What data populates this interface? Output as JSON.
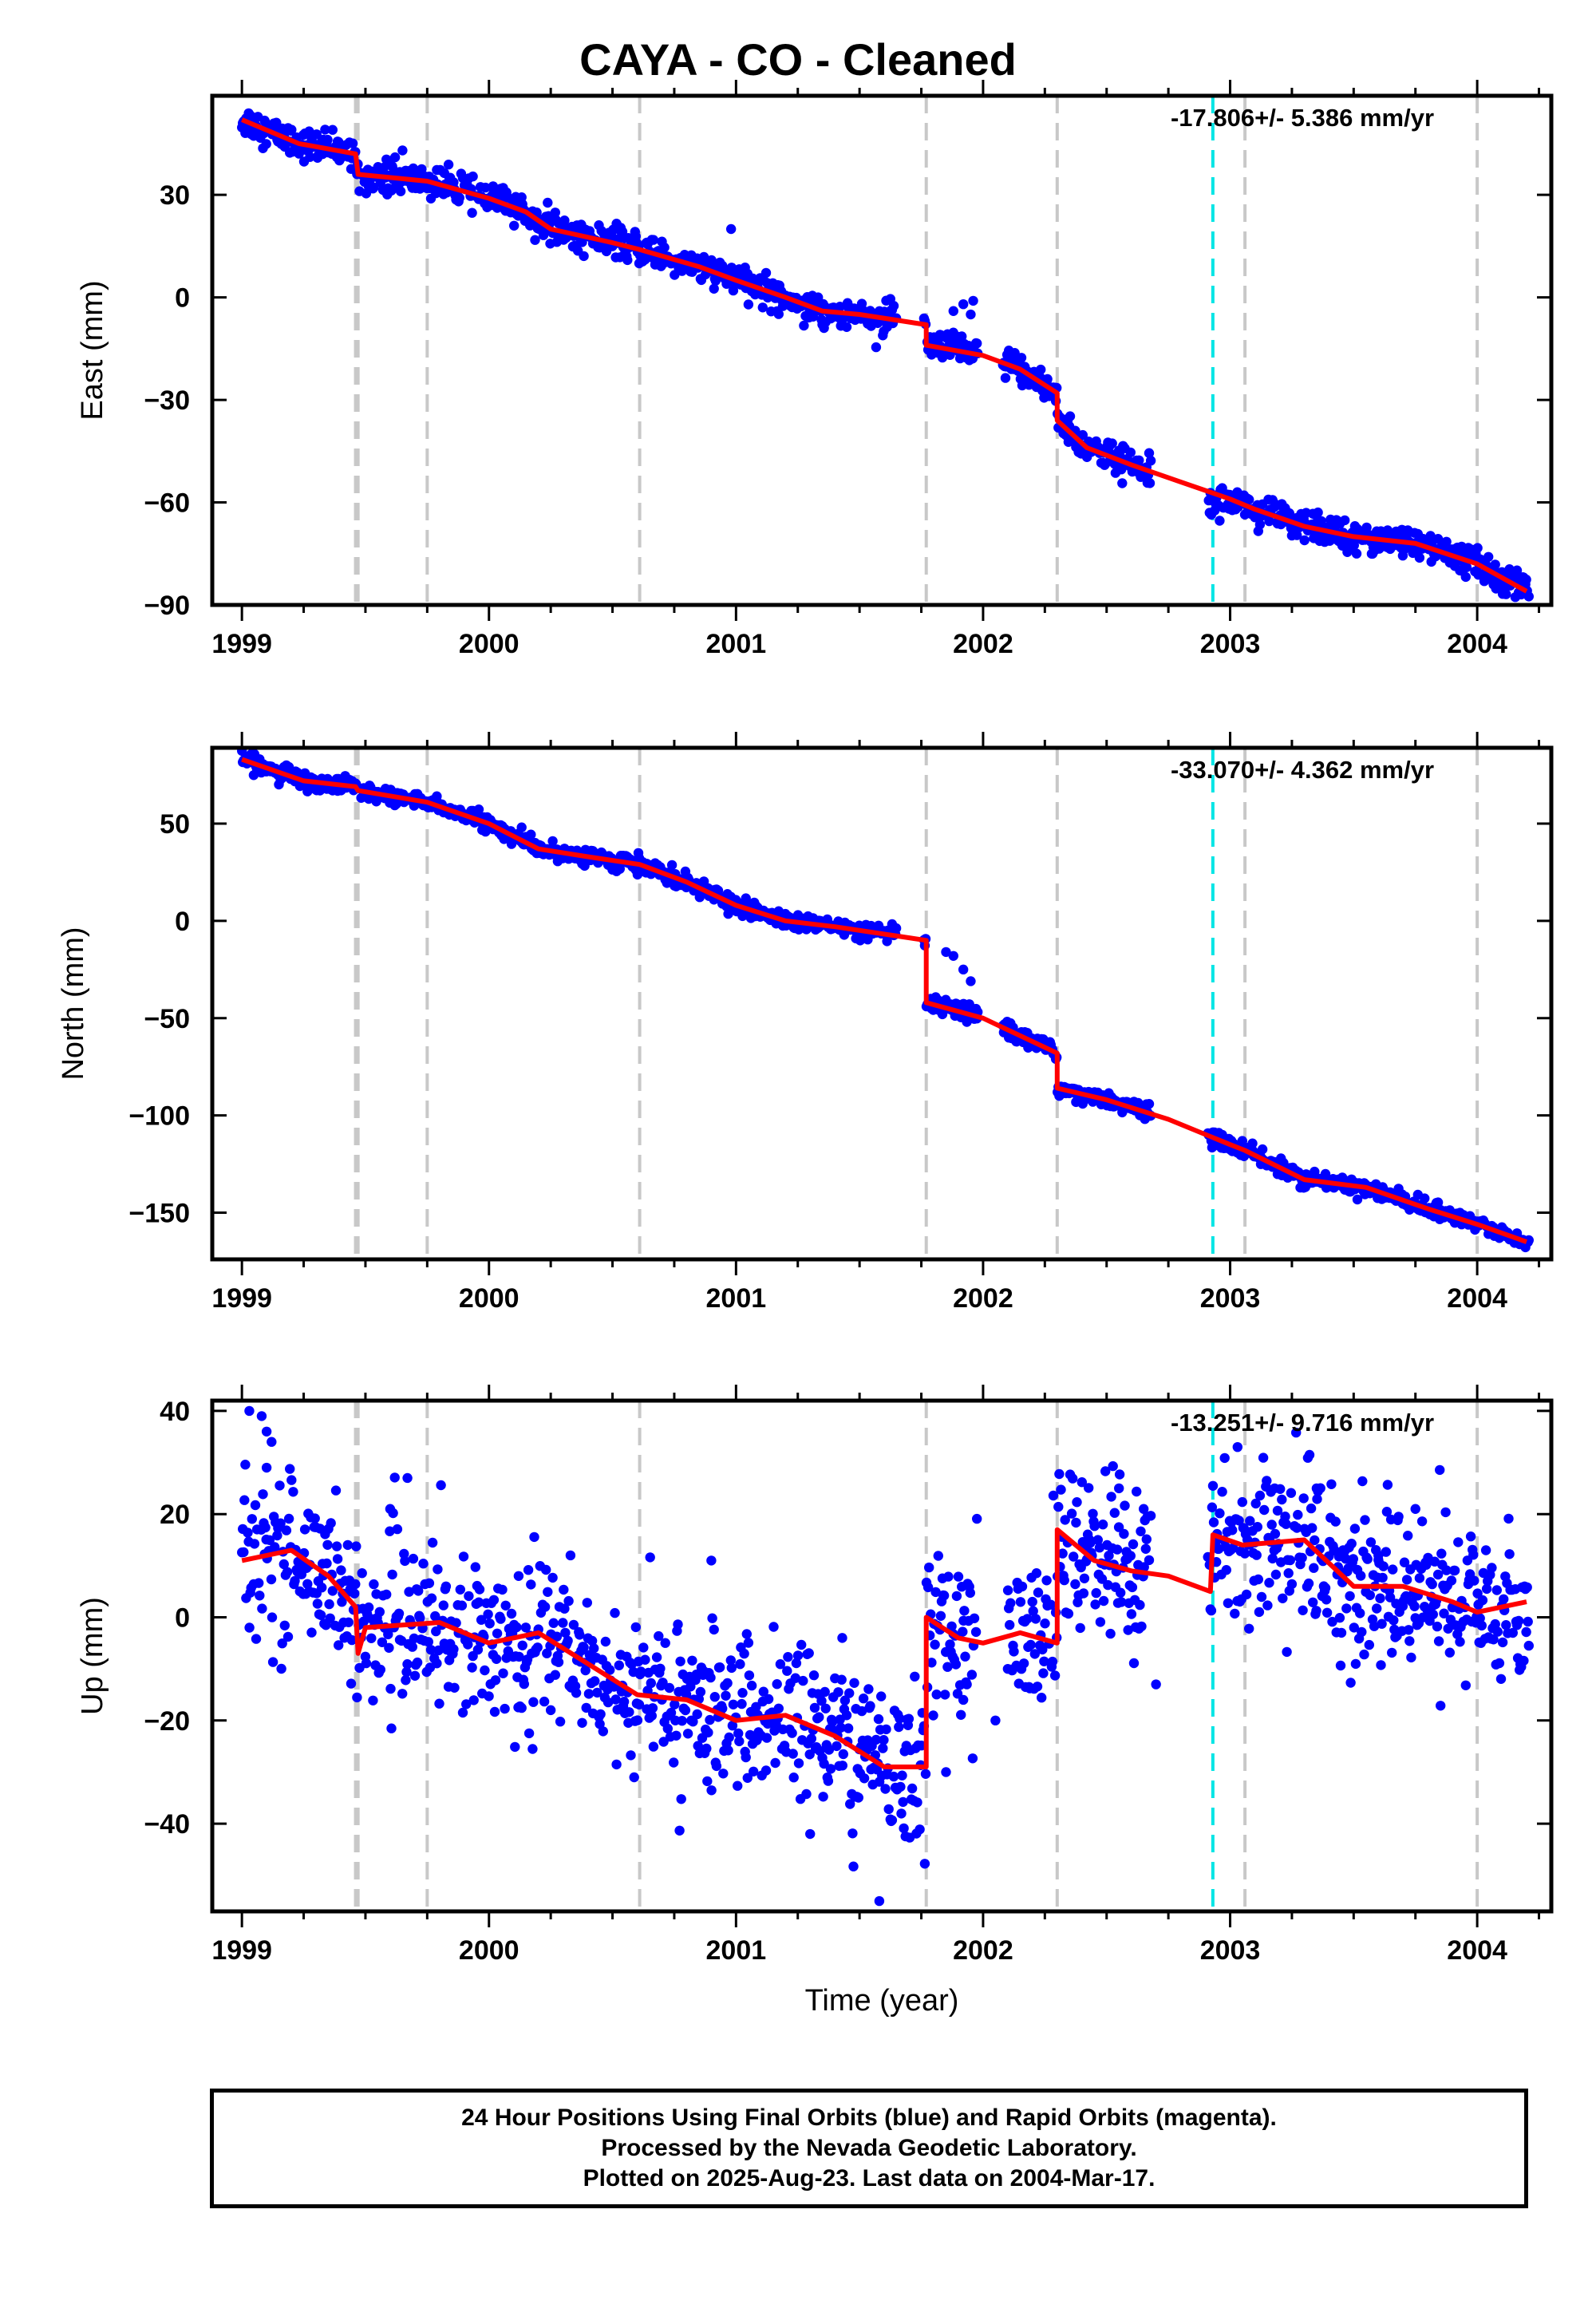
{
  "title": "CAYA  - CO - Cleaned",
  "colors": {
    "final_orbits": "#0000ff",
    "model": "#ff0000",
    "equipment_change": "#c8c8c8",
    "earthquake": "#00e5e5",
    "frame": "#000000"
  },
  "footer": {
    "line1": "24 Hour Positions Using Final Orbits (blue) and Rapid Orbits (magenta).",
    "line2": "Processed by the Nevada Geodetic Laboratory.",
    "line3": "Plotted on 2025-Aug-23. Last data on 2004-Mar-17."
  },
  "chart_data": [
    {
      "type": "scatter",
      "component": "east",
      "ylabel": "East (mm)",
      "xlabel": "",
      "xlim": [
        1998.88,
        2004.3
      ],
      "ylim": [
        -90,
        59
      ],
      "xticks": [
        1999,
        2000,
        2001,
        2002,
        2003,
        2004
      ],
      "yticks": [
        30,
        0,
        -30,
        -60,
        -90
      ],
      "rate_text": "-17.806+/- 5.386 mm/yr",
      "equipment_change_lines": [
        1999.46,
        1999.47,
        1999.75,
        2000.61,
        2001.77,
        2002.3,
        2003.06,
        2004.0
      ],
      "earthquake_lines": [
        2002.93
      ],
      "data_gaps": [
        [
          2001.65,
          2001.76
        ],
        [
          2001.98,
          2002.08
        ],
        [
          2002.68,
          2002.91
        ]
      ],
      "model_points": [
        [
          1999.0,
          52
        ],
        [
          1999.23,
          45
        ],
        [
          1999.46,
          42
        ],
        [
          1999.47,
          36
        ],
        [
          1999.75,
          34
        ],
        [
          2000.0,
          29
        ],
        [
          2000.15,
          25
        ],
        [
          2000.25,
          20
        ],
        [
          2000.5,
          16
        ],
        [
          2000.61,
          14
        ],
        [
          2000.85,
          9
        ],
        [
          2001.0,
          5
        ],
        [
          2001.2,
          0
        ],
        [
          2001.35,
          -4
        ],
        [
          2001.5,
          -5
        ],
        [
          2001.77,
          -8
        ],
        [
          2001.77,
          -14
        ],
        [
          2002.0,
          -17
        ],
        [
          2002.15,
          -21
        ],
        [
          2002.3,
          -28
        ],
        [
          2002.3,
          -36
        ],
        [
          2002.42,
          -44
        ],
        [
          2002.6,
          -49
        ],
        [
          2002.8,
          -54
        ],
        [
          2003.0,
          -59
        ],
        [
          2003.1,
          -62
        ],
        [
          2003.3,
          -67
        ],
        [
          2003.5,
          -70
        ],
        [
          2003.75,
          -72
        ],
        [
          2004.0,
          -78
        ],
        [
          2004.2,
          -86
        ]
      ],
      "noise_amplitude": 2.2,
      "outlier_points": [
        [
          1999.62,
          41
        ],
        [
          1999.65,
          43
        ],
        [
          2000.98,
          20
        ],
        [
          2001.88,
          -4
        ],
        [
          2001.92,
          -2
        ],
        [
          2001.95,
          -5
        ],
        [
          2001.96,
          -1
        ]
      ]
    },
    {
      "type": "scatter",
      "component": "north",
      "ylabel": "North (mm)",
      "xlabel": "",
      "xlim": [
        1998.88,
        2004.3
      ],
      "ylim": [
        -174,
        89
      ],
      "xticks": [
        1999,
        2000,
        2001,
        2002,
        2003,
        2004
      ],
      "yticks": [
        50,
        0,
        -50,
        -100,
        -150
      ],
      "rate_text": "-33.070+/- 4.362 mm/yr",
      "equipment_change_lines": [
        1999.46,
        1999.47,
        1999.75,
        2000.61,
        2001.77,
        2002.3,
        2003.06,
        2004.0
      ],
      "earthquake_lines": [
        2002.93
      ],
      "data_gaps": [
        [
          2001.65,
          2001.76
        ],
        [
          2001.98,
          2002.08
        ],
        [
          2002.68,
          2002.91
        ]
      ],
      "model_points": [
        [
          1999.0,
          83
        ],
        [
          1999.25,
          72
        ],
        [
          1999.46,
          69
        ],
        [
          1999.47,
          67
        ],
        [
          1999.75,
          61
        ],
        [
          2000.0,
          50
        ],
        [
          2000.2,
          37
        ],
        [
          2000.4,
          33
        ],
        [
          2000.61,
          29
        ],
        [
          2000.8,
          20
        ],
        [
          2001.0,
          8
        ],
        [
          2001.2,
          0
        ],
        [
          2001.4,
          -3
        ],
        [
          2001.77,
          -10
        ],
        [
          2001.77,
          -42
        ],
        [
          2002.0,
          -50
        ],
        [
          2002.3,
          -68
        ],
        [
          2002.3,
          -86
        ],
        [
          2002.5,
          -92
        ],
        [
          2002.75,
          -102
        ],
        [
          2003.0,
          -115
        ],
        [
          2003.06,
          -118
        ],
        [
          2003.3,
          -133
        ],
        [
          2003.55,
          -137
        ],
        [
          2003.8,
          -148
        ],
        [
          2004.0,
          -156
        ],
        [
          2004.2,
          -165
        ]
      ],
      "noise_amplitude": 2.0,
      "outlier_points": [
        [
          1999.18,
          80
        ],
        [
          2001.85,
          -16
        ],
        [
          2001.88,
          -18
        ],
        [
          2001.92,
          -25
        ],
        [
          2001.95,
          -31
        ],
        [
          2000.42,
          36
        ]
      ]
    },
    {
      "type": "scatter",
      "component": "up",
      "ylabel": "Up (mm)",
      "xlabel": "Time (year)",
      "xlim": [
        1998.88,
        2004.3
      ],
      "ylim": [
        -57,
        42
      ],
      "xticks": [
        1999,
        2000,
        2001,
        2002,
        2003,
        2004
      ],
      "yticks": [
        40,
        20,
        0,
        -20,
        -40
      ],
      "rate_text": "-13.251+/- 9.716 mm/yr",
      "equipment_change_lines": [
        1999.46,
        1999.47,
        1999.75,
        2000.61,
        2001.77,
        2002.3,
        2003.06,
        2004.0
      ],
      "earthquake_lines": [
        2002.93
      ],
      "data_gaps": [
        [
          1999.92,
          1999.93
        ],
        [
          2001.98,
          2002.1
        ],
        [
          2002.68,
          2002.91
        ]
      ],
      "model_points": [
        [
          1999.0,
          11
        ],
        [
          1999.2,
          13
        ],
        [
          1999.35,
          8
        ],
        [
          1999.46,
          2
        ],
        [
          1999.47,
          -7
        ],
        [
          1999.5,
          -2
        ],
        [
          1999.8,
          -1
        ],
        [
          2000.0,
          -5
        ],
        [
          2000.2,
          -3
        ],
        [
          2000.4,
          -9
        ],
        [
          2000.6,
          -15
        ],
        [
          2000.8,
          -16
        ],
        [
          2001.0,
          -20
        ],
        [
          2001.2,
          -19
        ],
        [
          2001.4,
          -23
        ],
        [
          2001.6,
          -29
        ],
        [
          2001.77,
          -29
        ],
        [
          2001.77,
          0
        ],
        [
          2001.9,
          -4
        ],
        [
          2002.0,
          -5
        ],
        [
          2002.15,
          -3
        ],
        [
          2002.3,
          -5
        ],
        [
          2002.3,
          17
        ],
        [
          2002.45,
          11
        ],
        [
          2002.6,
          9
        ],
        [
          2002.75,
          8
        ],
        [
          2002.92,
          5
        ],
        [
          2002.93,
          16
        ],
        [
          2003.05,
          14
        ],
        [
          2003.3,
          15
        ],
        [
          2003.5,
          6
        ],
        [
          2003.7,
          6
        ],
        [
          2003.9,
          3
        ],
        [
          2004.0,
          1
        ],
        [
          2004.2,
          3
        ]
      ],
      "noise_amplitude": 7.5,
      "outlier_points": [
        [
          1999.03,
          40
        ],
        [
          1999.08,
          39
        ],
        [
          1999.1,
          36
        ],
        [
          1999.12,
          34
        ],
        [
          1999.1,
          29
        ],
        [
          1999.6,
          21
        ],
        [
          1999.67,
          27
        ],
        [
          2000.12,
          8
        ],
        [
          2000.25,
          -18
        ],
        [
          2000.33,
          12
        ],
        [
          2000.48,
          -14
        ],
        [
          2000.9,
          11
        ],
        [
          2001.3,
          -42
        ],
        [
          2001.43,
          -4
        ],
        [
          2001.58,
          -55
        ],
        [
          2001.85,
          -30
        ],
        [
          2001.92,
          -16
        ],
        [
          2002.05,
          -20
        ],
        [
          2002.1,
          -10
        ],
        [
          2002.55,
          25
        ],
        [
          2002.65,
          21
        ],
        [
          2002.7,
          -13
        ],
        [
          2003.03,
          33
        ],
        [
          2003.18,
          25
        ],
        [
          2003.35,
          25
        ],
        [
          2003.6,
          12
        ],
        [
          2003.75,
          21
        ]
      ]
    }
  ]
}
